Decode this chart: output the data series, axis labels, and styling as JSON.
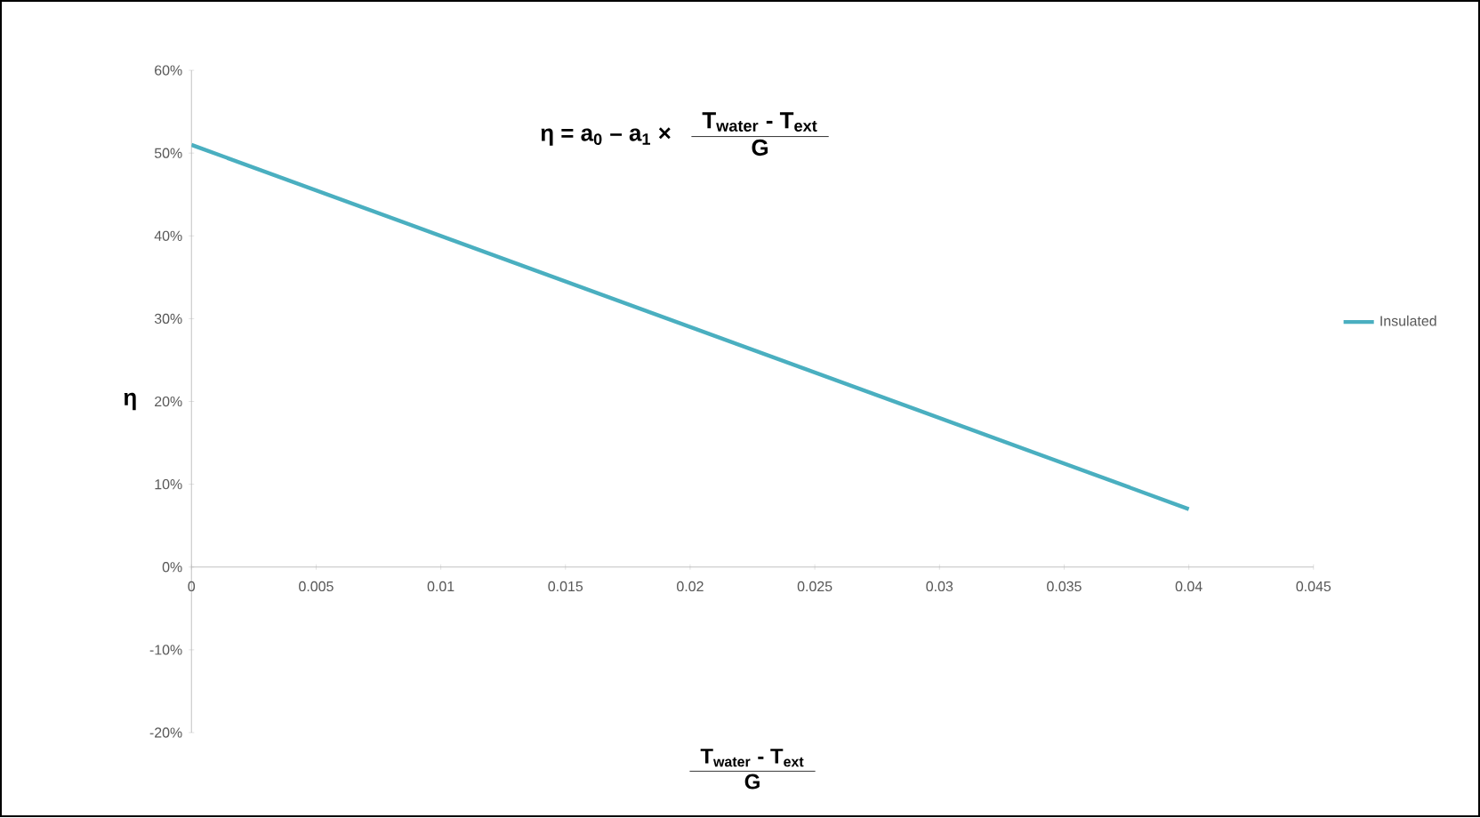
{
  "chart_data": {
    "type": "line",
    "ylabel": "η",
    "xlabel": "T$_{water}$ - T$_{ext}$",
    "annotations": [
      "η = a$_{0}$ – a$_{1}$   ×",
      "T$_{water}$ - T$_{ext}$",
      "G",
      "G"
    ],
    "x": [
      0,
      0.04
    ],
    "series": [
      {
        "name": "Insulated",
        "color": "#4aafc0",
        "values": [
          51,
          7
        ]
      }
    ],
    "xlim": [
      0,
      0.045
    ],
    "xticks": [
      0,
      0.005,
      0.01,
      0.015,
      0.02,
      0.025,
      0.03,
      0.035,
      0.04,
      0.045
    ],
    "ylim": [
      -20,
      60
    ],
    "yticks": [
      {
        "value": -20,
        "label": "-20%"
      },
      {
        "value": -10,
        "label": "-10%"
      },
      {
        "value": 0,
        "label": "0%"
      },
      {
        "value": 10,
        "label": "10%"
      },
      {
        "value": 20,
        "label": "20%"
      },
      {
        "value": 30,
        "label": "30%"
      },
      {
        "value": 40,
        "label": "40%"
      },
      {
        "value": 50,
        "label": "50%"
      },
      {
        "value": 60,
        "label": "60%"
      }
    ],
    "grid": false,
    "legend": "right",
    "marker": "none",
    "line_style": "solid"
  }
}
